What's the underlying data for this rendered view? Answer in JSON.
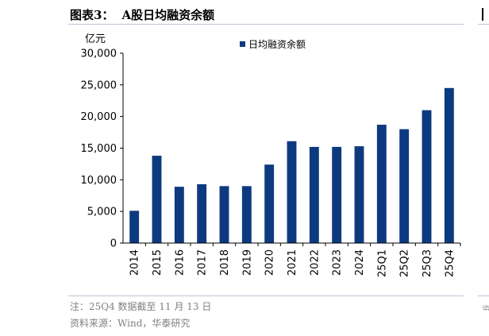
{
  "header": {
    "figure_label": "图表3：",
    "title": "A股日均融资余额"
  },
  "colors": {
    "bar": "#0d3a7f",
    "axis": "#000000",
    "rule": "#b8c6d6",
    "footnote": "#808080"
  },
  "chart_data": {
    "type": "bar",
    "title": "A股日均融资余额",
    "ylabel": "亿元",
    "xlabel": "",
    "ylim": [
      0,
      30000
    ],
    "yticks": [
      0,
      5000,
      10000,
      15000,
      20000,
      25000,
      30000
    ],
    "ytick_labels": [
      "0",
      "5,000",
      "10,000",
      "15,000",
      "20,000",
      "25,000",
      "30,000"
    ],
    "grid": false,
    "legend_position": "top-center",
    "categories": [
      "2014",
      "2015",
      "2016",
      "2017",
      "2018",
      "2019",
      "2020",
      "2021",
      "2022",
      "2023",
      "2024",
      "25Q1",
      "25Q2",
      "25Q3",
      "25Q4"
    ],
    "series": [
      {
        "name": "日均融资余额",
        "values": [
          5100,
          13800,
          8900,
          9300,
          9000,
          9000,
          12400,
          16100,
          15200,
          15200,
          15300,
          18700,
          18000,
          21000,
          24500
        ]
      }
    ]
  },
  "footer": {
    "note": "注：25Q4 数据截至 11 月 13 日",
    "source": "资料来源：Wind，华泰研究"
  },
  "right_edge_glyph": "资"
}
